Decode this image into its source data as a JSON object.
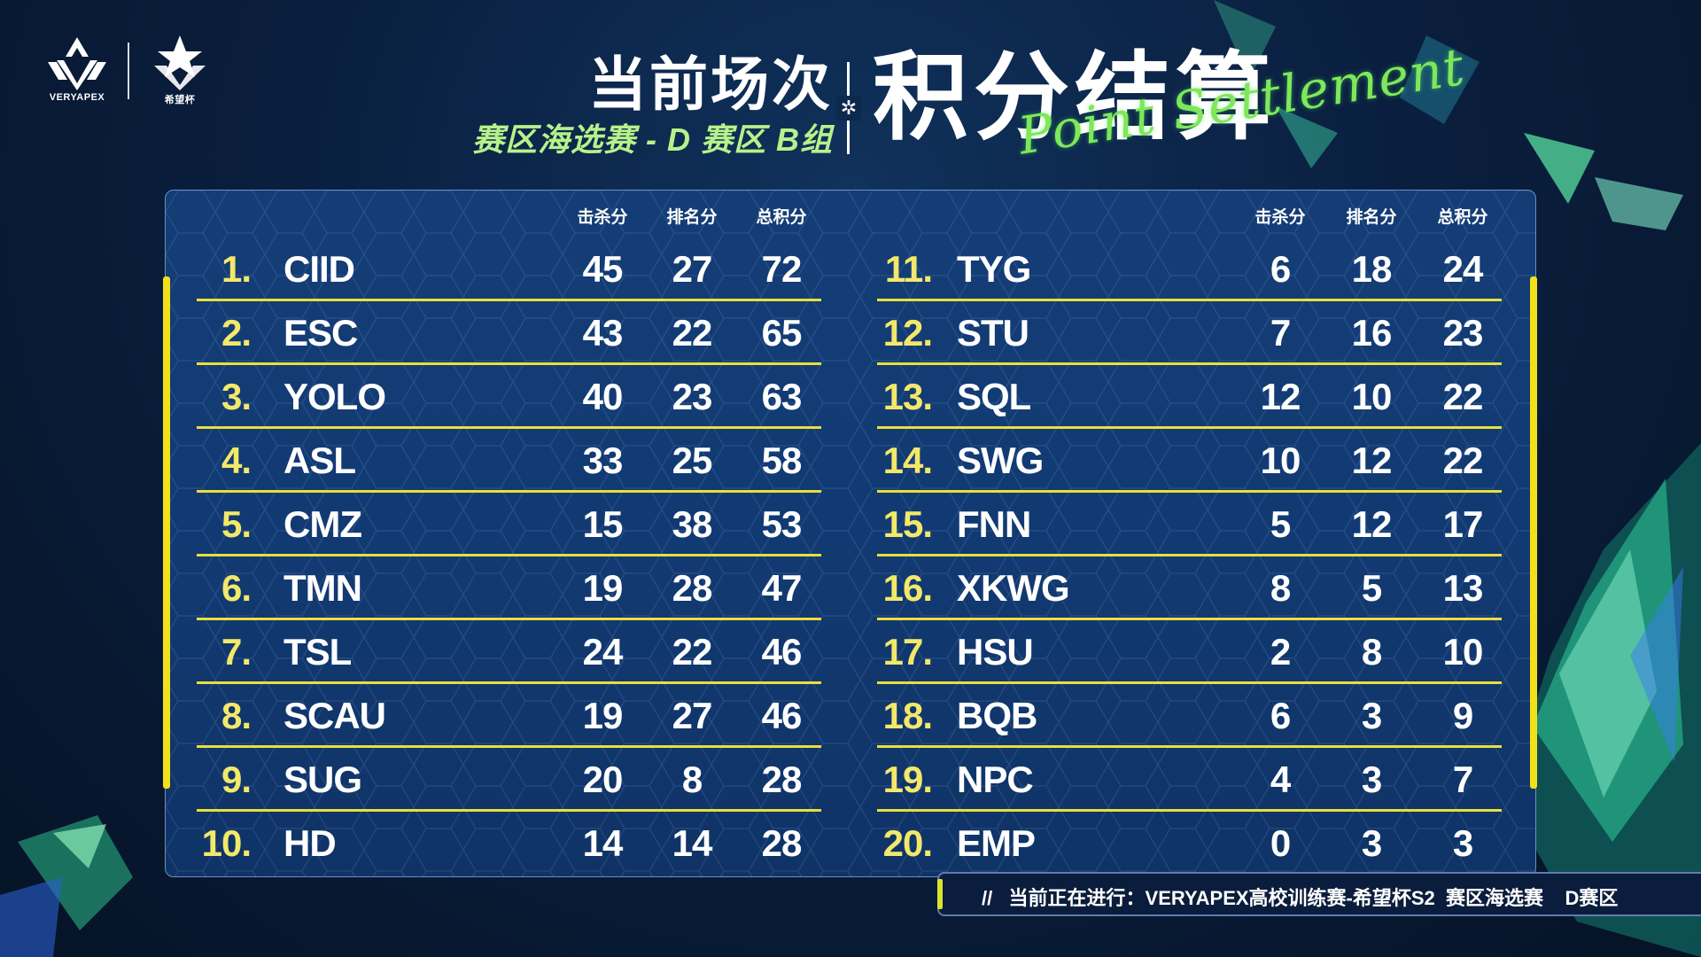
{
  "brand": {
    "logo1_text": "VERYAPEX",
    "logo2_text": "希望杯",
    "logo1_icon": "veryapex-logo-icon",
    "logo2_icon": "xiwangbei-logo-icon"
  },
  "title": {
    "main": "当前场次",
    "sub": "赛区海选赛 - D 赛区 B组",
    "big": "积分结算",
    "script": "Point Settlement",
    "star_icon": "✲",
    "colors": {
      "sub": "#b6f28a",
      "script": "#7ee85a",
      "accent": "#e9df3b"
    }
  },
  "table": {
    "headers": [
      "击杀分",
      "排名分",
      "总积分"
    ],
    "left": [
      {
        "rank": "1.",
        "team": "CIID",
        "kill": "45",
        "place": "27",
        "total": "72"
      },
      {
        "rank": "2.",
        "team": "ESC",
        "kill": "43",
        "place": "22",
        "total": "65"
      },
      {
        "rank": "3.",
        "team": "YOLO",
        "kill": "40",
        "place": "23",
        "total": "63"
      },
      {
        "rank": "4.",
        "team": "ASL",
        "kill": "33",
        "place": "25",
        "total": "58"
      },
      {
        "rank": "5.",
        "team": "CMZ",
        "kill": "15",
        "place": "38",
        "total": "53"
      },
      {
        "rank": "6.",
        "team": "TMN",
        "kill": "19",
        "place": "28",
        "total": "47"
      },
      {
        "rank": "7.",
        "team": "TSL",
        "kill": "24",
        "place": "22",
        "total": "46"
      },
      {
        "rank": "8.",
        "team": "SCAU",
        "kill": "19",
        "place": "27",
        "total": "46"
      },
      {
        "rank": "9.",
        "team": "SUG",
        "kill": "20",
        "place": "8",
        "total": "28"
      },
      {
        "rank": "10.",
        "team": "HD",
        "kill": "14",
        "place": "14",
        "total": "28"
      }
    ],
    "right": [
      {
        "rank": "11.",
        "team": "TYG",
        "kill": "6",
        "place": "18",
        "total": "24"
      },
      {
        "rank": "12.",
        "team": "STU",
        "kill": "7",
        "place": "16",
        "total": "23"
      },
      {
        "rank": "13.",
        "team": "SQL",
        "kill": "12",
        "place": "10",
        "total": "22"
      },
      {
        "rank": "14.",
        "team": "SWG",
        "kill": "10",
        "place": "12",
        "total": "22"
      },
      {
        "rank": "15.",
        "team": "FNN",
        "kill": "5",
        "place": "12",
        "total": "17"
      },
      {
        "rank": "16.",
        "team": "XKWG",
        "kill": "8",
        "place": "5",
        "total": "13"
      },
      {
        "rank": "17.",
        "team": "HSU",
        "kill": "2",
        "place": "8",
        "total": "10"
      },
      {
        "rank": "18.",
        "team": "BQB",
        "kill": "6",
        "place": "3",
        "total": "9"
      },
      {
        "rank": "19.",
        "team": "NPC",
        "kill": "4",
        "place": "3",
        "total": "7"
      },
      {
        "rank": "20.",
        "team": "EMP",
        "kill": "0",
        "place": "3",
        "total": "3"
      }
    ]
  },
  "footer": {
    "ticker": "//   当前正在进行：VERYAPEX高校训练赛-希望杯S2  赛区海选赛    D赛区"
  }
}
